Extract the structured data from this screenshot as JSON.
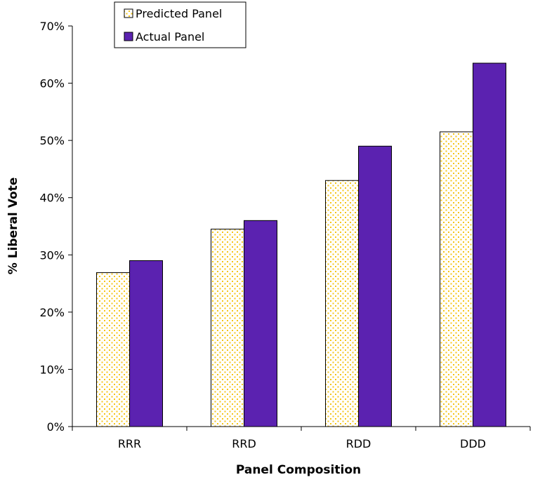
{
  "chart_data": {
    "type": "bar",
    "title": "",
    "xlabel": "Panel Composition",
    "ylabel": "% Liberal Vote",
    "categories": [
      "RRR",
      "RRD",
      "RDD",
      "DDD"
    ],
    "ylim": [
      0,
      0.7
    ],
    "yticks": [
      0,
      0.1,
      0.2,
      0.3,
      0.4,
      0.5,
      0.6,
      0.7
    ],
    "ytick_labels": [
      "0%",
      "10%",
      "20%",
      "30%",
      "40%",
      "50%",
      "60%",
      "70%"
    ],
    "grid": false,
    "legend_position": "top-left",
    "series": [
      {
        "name": "Predicted Panel",
        "values": [
          0.269,
          0.345,
          0.43,
          0.515
        ],
        "color": "#FFFFFF",
        "pattern": "dotted",
        "pattern_color": "#F5C518"
      },
      {
        "name": "Actual Panel",
        "values": [
          0.29,
          0.36,
          0.49,
          0.635
        ],
        "color": "#5B22B0"
      }
    ]
  }
}
